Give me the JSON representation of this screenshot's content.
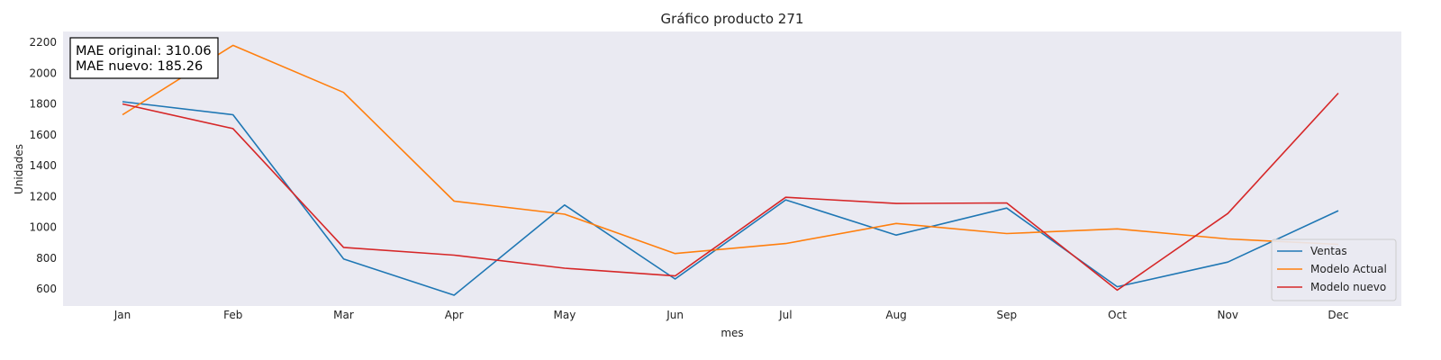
{
  "chart_data": {
    "type": "line",
    "title": "Gráfico producto 271",
    "xlabel": "mes",
    "ylabel": "Unidades",
    "categories": [
      "Jan",
      "Feb",
      "Mar",
      "Apr",
      "May",
      "Jun",
      "Jul",
      "Aug",
      "Sep",
      "Oct",
      "Nov",
      "Dec"
    ],
    "ylim": [
      490,
      2270
    ],
    "yticks": [
      600,
      800,
      1000,
      1200,
      1400,
      1600,
      1800,
      2000,
      2200
    ],
    "grid": false,
    "legend_position": "bottom-right",
    "annotation": {
      "line1": "MAE original: 310.06",
      "line2": "MAE nuevo: 185.26",
      "position": "top-left"
    },
    "series": [
      {
        "name": "Ventas",
        "color": "#1f77b4",
        "values": [
          1815,
          1730,
          795,
          560,
          1145,
          665,
          1178,
          950,
          1125,
          615,
          775,
          1108
        ]
      },
      {
        "name": "Modelo Actual",
        "color": "#ff7f0e",
        "values": [
          1730,
          2180,
          1875,
          1170,
          1085,
          830,
          895,
          1025,
          960,
          990,
          925,
          890
        ]
      },
      {
        "name": "Modelo nuevo",
        "color": "#d62728",
        "values": [
          1800,
          1640,
          870,
          820,
          735,
          685,
          1195,
          1155,
          1158,
          593,
          1090,
          1870
        ]
      }
    ]
  }
}
